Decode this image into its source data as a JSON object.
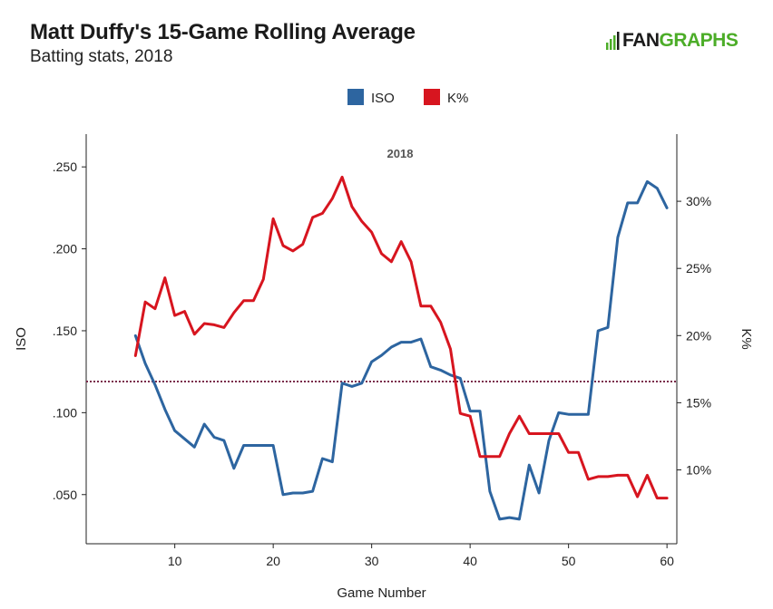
{
  "header": {
    "title": "Matt Duffy's 15-Game Rolling Average",
    "subtitle": "Batting stats, 2018"
  },
  "logo": {
    "part1": "FAN",
    "part2": "GRAPHS",
    "accent_color": "#4cad28"
  },
  "chart_data": {
    "type": "line",
    "xlabel": "Game Number",
    "ylabel_left": "ISO",
    "ylabel_right": "K%",
    "xlim": [
      1,
      61
    ],
    "ylim_left": [
      0.02,
      0.27
    ],
    "ylim_right": [
      4.5,
      35
    ],
    "x_ticks": [
      10,
      20,
      30,
      40,
      50,
      60
    ],
    "y_left_ticks": [
      {
        "value": 0.05,
        "label": ".050"
      },
      {
        "value": 0.1,
        "label": ".100"
      },
      {
        "value": 0.15,
        "label": ".150"
      },
      {
        "value": 0.2,
        "label": ".200"
      },
      {
        "value": 0.25,
        "label": ".250"
      }
    ],
    "y_right_ticks": [
      {
        "value": 10,
        "label": "10%"
      },
      {
        "value": 15,
        "label": "15%"
      },
      {
        "value": 20,
        "label": "20%"
      },
      {
        "value": 25,
        "label": "25%"
      },
      {
        "value": 30,
        "label": "30%"
      }
    ],
    "annotation": "2018",
    "reference_line": {
      "axis": "left",
      "value": 0.119,
      "color": "#7a2a4a",
      "style": "dotted"
    },
    "legend_position": "top-center",
    "x": [
      6,
      7,
      8,
      9,
      10,
      11,
      12,
      13,
      14,
      15,
      16,
      17,
      18,
      19,
      20,
      21,
      22,
      23,
      24,
      25,
      26,
      27,
      28,
      29,
      30,
      31,
      32,
      33,
      34,
      35,
      36,
      37,
      38,
      39,
      40,
      41,
      42,
      43,
      44,
      45,
      46,
      47,
      48,
      49,
      50,
      51,
      52,
      53,
      54,
      55,
      56,
      57,
      58,
      59,
      60
    ],
    "series": [
      {
        "name": "ISO",
        "axis": "left",
        "color": "#2d65a0",
        "values": [
          0.147,
          0.13,
          0.117,
          0.102,
          0.089,
          0.084,
          0.079,
          0.093,
          0.085,
          0.083,
          0.066,
          0.08,
          0.08,
          0.08,
          0.08,
          0.05,
          0.051,
          0.051,
          0.052,
          0.072,
          0.07,
          0.118,
          0.116,
          0.118,
          0.131,
          0.135,
          0.14,
          0.143,
          0.143,
          0.145,
          0.128,
          0.126,
          0.123,
          0.121,
          0.101,
          0.101,
          0.052,
          0.035,
          0.036,
          0.035,
          0.068,
          0.051,
          0.083,
          0.1,
          0.099,
          0.099,
          0.099,
          0.15,
          0.152,
          0.207,
          0.228,
          0.228,
          0.241,
          0.237,
          0.225
        ]
      },
      {
        "name": "K%",
        "axis": "right",
        "color": "#d7151f",
        "values": [
          18.5,
          22.5,
          22.0,
          24.3,
          21.5,
          21.8,
          20.1,
          20.9,
          20.8,
          20.6,
          21.7,
          22.6,
          22.6,
          24.2,
          28.7,
          26.7,
          26.3,
          26.8,
          28.8,
          29.1,
          30.2,
          31.8,
          29.6,
          28.5,
          27.7,
          26.1,
          25.5,
          27.0,
          25.5,
          22.2,
          22.2,
          21.0,
          19.0,
          14.2,
          14.0,
          11.0,
          11.0,
          11.0,
          12.7,
          14.0,
          12.7,
          12.7,
          12.7,
          12.7,
          11.3,
          11.3,
          9.3,
          9.5,
          9.5,
          9.6,
          9.6,
          8.0,
          9.6,
          7.9,
          7.9
        ]
      }
    ]
  }
}
